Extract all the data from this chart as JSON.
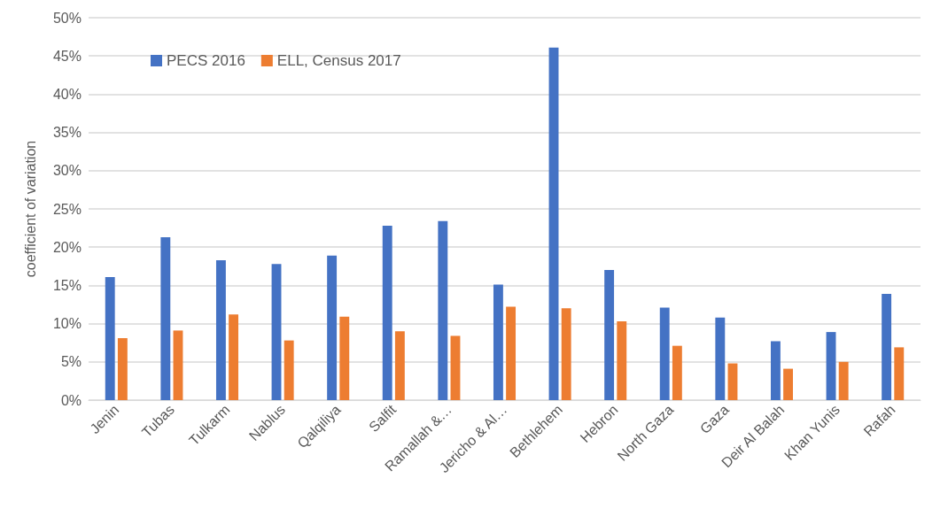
{
  "chart_data": {
    "type": "bar",
    "ylabel": "coefficient of variation",
    "categories": [
      "Jenin",
      "Tubas",
      "Tulkarm",
      "Nablus",
      "Qalqiliya",
      "Salfit",
      "Ramallah &…",
      "Jericho & Al…",
      "Bethlehem",
      "Hebron",
      "North Gaza",
      "Gaza",
      "Deir Al Balah",
      "Khan Yunis",
      "Rafah"
    ],
    "series": [
      {
        "name": "PECS 2016",
        "color": "#4472c4",
        "values": [
          16.1,
          21.3,
          18.3,
          17.8,
          18.9,
          22.8,
          23.4,
          15.1,
          46.1,
          17.0,
          12.1,
          10.8,
          7.7,
          8.9,
          13.9
        ]
      },
      {
        "name": "ELL, Census 2017",
        "color": "#ed7d31",
        "values": [
          8.1,
          9.1,
          11.2,
          7.8,
          10.9,
          9.0,
          8.4,
          12.2,
          12.0,
          10.3,
          7.1,
          4.8,
          4.1,
          5.0,
          6.9
        ]
      }
    ],
    "ylim": [
      0,
      50
    ],
    "yticks": [
      {
        "value": 0,
        "label": "0%"
      },
      {
        "value": 5,
        "label": "5%"
      },
      {
        "value": 10,
        "label": "10%"
      },
      {
        "value": 15,
        "label": "15%"
      },
      {
        "value": 20,
        "label": "20%"
      },
      {
        "value": 25,
        "label": "25%"
      },
      {
        "value": 30,
        "label": "30%"
      },
      {
        "value": 35,
        "label": "35%"
      },
      {
        "value": 40,
        "label": "40%"
      },
      {
        "value": 45,
        "label": "45%"
      },
      {
        "value": 50,
        "label": "50%"
      }
    ],
    "grid": "y",
    "legend": "top left"
  }
}
